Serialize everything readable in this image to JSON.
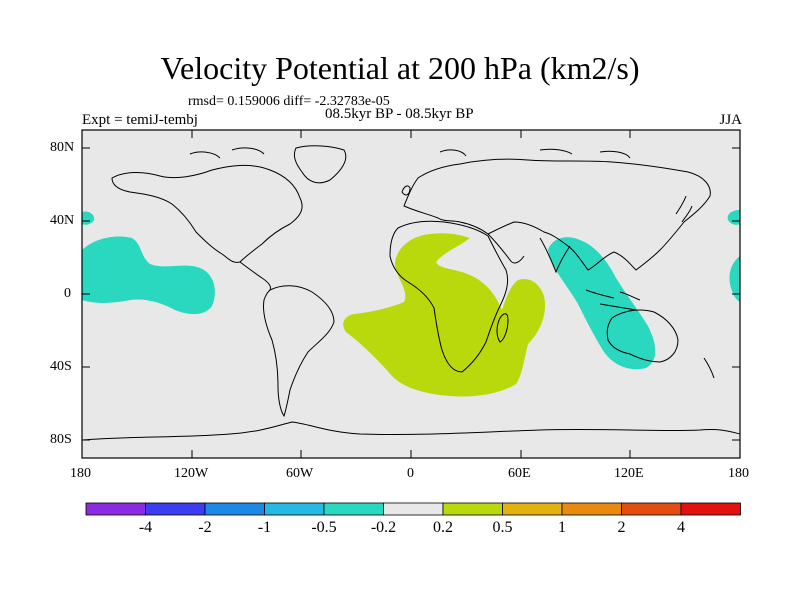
{
  "title": "Velocity Potential at 200 hPa (km2/s)",
  "stats": "rmsd= 0.159006 diff= -2.32783e-05",
  "experiment": "Expt = temiJ-tembj",
  "period": "08.5kyr BP - 08.5kyr BP",
  "season": "JJA",
  "y_axis_labels": [
    "80N",
    "40N",
    "0",
    "40S",
    "80S"
  ],
  "x_axis_labels": [
    "180",
    "120W",
    "60W",
    "0",
    "60E",
    "120E",
    "180"
  ],
  "colorbar": {
    "colors": [
      "#8a2be2",
      "#3c3cf0",
      "#1e88e5",
      "#25b9e3",
      "#2ad8bf",
      "#e8e8e8",
      "#b9d90d",
      "#e3b210",
      "#e88a10",
      "#e34d10",
      "#e31010"
    ],
    "labels": [
      "-4",
      "-2",
      "-1",
      "-0.5",
      "-0.2",
      "0.2",
      "0.5",
      "1",
      "2",
      "4"
    ]
  },
  "colors": {
    "background": "#e8e8e8",
    "negative_contour": "#2ad8bf",
    "positive_contour": "#b9d90d"
  }
}
